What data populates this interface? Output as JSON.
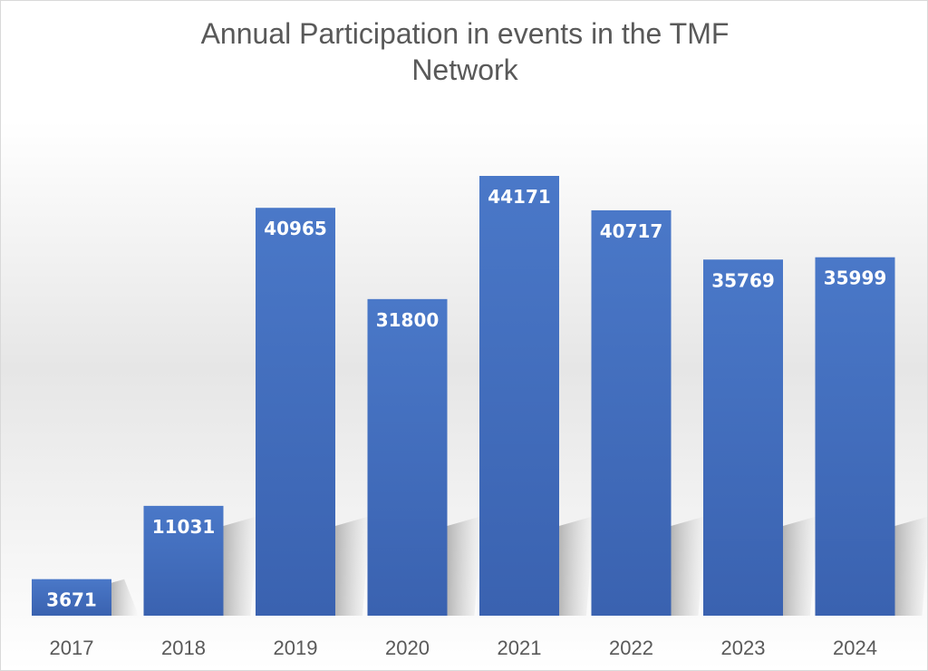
{
  "chart_data": {
    "type": "bar",
    "title_line1": "Annual Participation in events in the TMF",
    "title_line2": "Network",
    "categories": [
      "2017",
      "2018",
      "2019",
      "2020",
      "2021",
      "2022",
      "2023",
      "2024"
    ],
    "values": [
      3671,
      11031,
      40965,
      31800,
      44171,
      40717,
      35769,
      35999
    ],
    "xlabel": "",
    "ylabel": "",
    "ylim": [
      0,
      44171
    ],
    "grid": false,
    "legend": "none",
    "bar_color": "#4472c4",
    "data_labels": "inside-top"
  }
}
